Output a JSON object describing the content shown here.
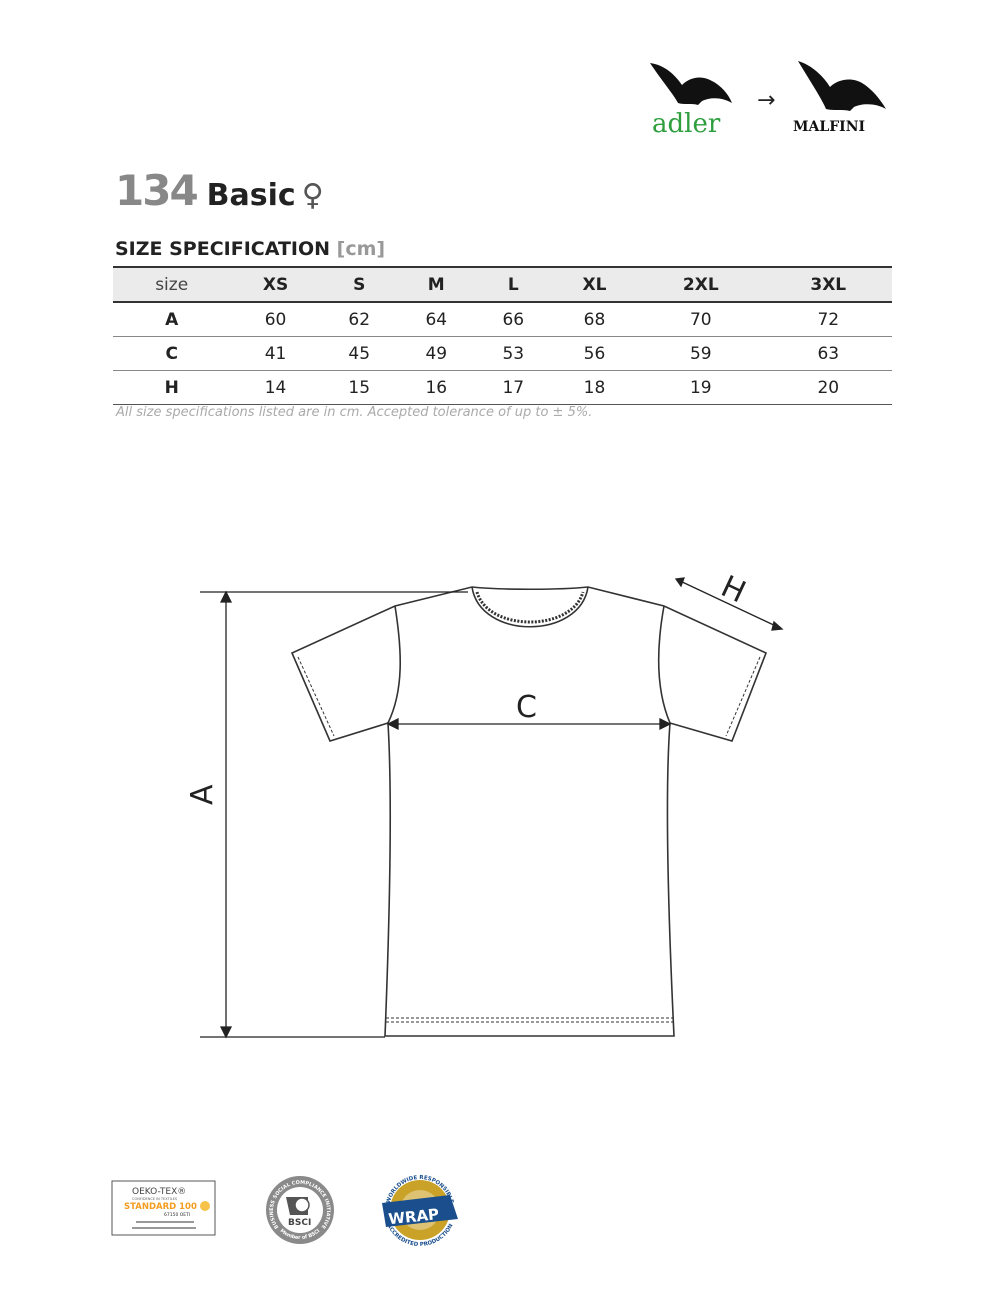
{
  "brands": {
    "old": "adler",
    "new": "MALFINI",
    "arrow": "→"
  },
  "product": {
    "number": "134",
    "name": "Basic",
    "gender_symbol": "♀"
  },
  "spec": {
    "title": "SIZE SPECIFICATION",
    "unit": "[cm]"
  },
  "table": {
    "headers": [
      "size",
      "XS",
      "S",
      "M",
      "L",
      "XL",
      "2XL",
      "3XL"
    ],
    "rows": [
      [
        "A",
        "60",
        "62",
        "64",
        "66",
        "68",
        "70",
        "72"
      ],
      [
        "C",
        "41",
        "45",
        "49",
        "53",
        "56",
        "59",
        "63"
      ],
      [
        "H",
        "14",
        "15",
        "16",
        "17",
        "18",
        "19",
        "20"
      ]
    ]
  },
  "note": "All size specifications listed are in cm. Accepted tolerance of up to ± 5%.",
  "diagram": {
    "label_a": "A",
    "label_c": "C",
    "label_h": "H"
  },
  "certifications": {
    "oekotex": {
      "line1": "OEKO-TEX®",
      "line2": "CONFIDENCE IN TEXTILES",
      "line3": "STANDARD 100",
      "line4": "67150 OETI"
    },
    "bsci": {
      "name": "BSCI",
      "ring": "BUSINESS SOCIAL COMPLIANCE INITIATIVE",
      "bottom": "Member of BSCI"
    },
    "wrap": {
      "name": "WRAP",
      "ring_top": "WORLDWIDE RESPONSIBLE",
      "ring_bottom": "ACCREDITED PRODUCTION"
    }
  },
  "colors": {
    "adler_green": "#2e9e3e",
    "oeko_orange": "#f39c1e",
    "wrap_blue": "#1a4e8c",
    "wrap_gold": "#c9a227"
  }
}
